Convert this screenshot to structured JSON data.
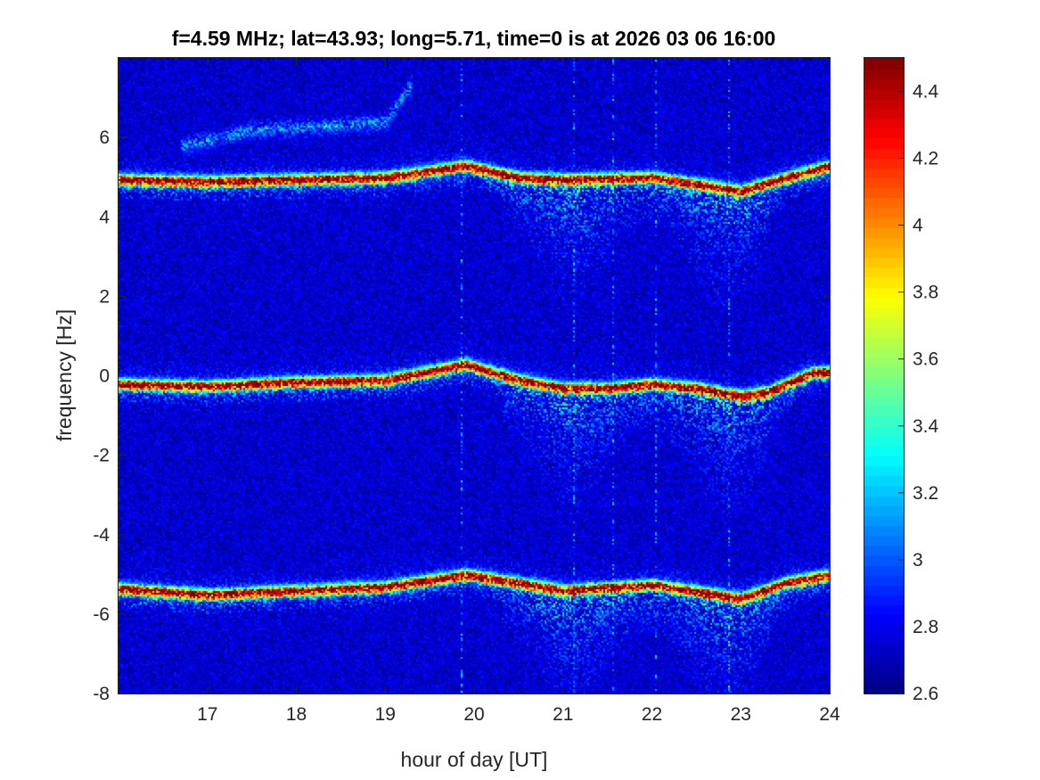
{
  "chart_data": {
    "type": "heatmap",
    "title": "f=4.59 MHz;  lat=43.93; long=5.71, time=0 is at 2026 03 06 16:00",
    "xlabel": "hour of day [UT]",
    "ylabel": "frequency [Hz]",
    "xlim": [
      16,
      24
    ],
    "ylim": [
      -8,
      8
    ],
    "xticks": [
      "17",
      "18",
      "19",
      "20",
      "21",
      "22",
      "23",
      "24"
    ],
    "yticks": [
      "-8",
      "-6",
      "-4",
      "-2",
      "0",
      "2",
      "4",
      "6"
    ],
    "colorbar": {
      "colormap": "jet",
      "clim": [
        2.6,
        4.5
      ],
      "ticks": [
        "2.6",
        "2.8",
        "3",
        "3.2",
        "3.4",
        "3.6",
        "3.8",
        "4",
        "4.2",
        "4.4"
      ]
    },
    "traces": [
      {
        "name": "upper",
        "hours": [
          16,
          17,
          18,
          19,
          19.9,
          20.5,
          21,
          22,
          22.6,
          23,
          23.5,
          24
        ],
        "freq": [
          4.95,
          4.9,
          4.95,
          5.0,
          5.3,
          5.0,
          4.95,
          5.0,
          4.8,
          4.65,
          5.0,
          5.3
        ]
      },
      {
        "name": "central",
        "hours": [
          16,
          17,
          18,
          19,
          19.9,
          20.5,
          21,
          21.5,
          22,
          22.5,
          23,
          23.3,
          23.8,
          24
        ],
        "freq": [
          -0.2,
          -0.25,
          -0.15,
          -0.1,
          0.3,
          -0.1,
          -0.3,
          -0.3,
          -0.2,
          -0.3,
          -0.5,
          -0.4,
          0.1,
          0.1
        ]
      },
      {
        "name": "lower",
        "hours": [
          16,
          17,
          18,
          19,
          19.9,
          20.5,
          21,
          22,
          23,
          23.5,
          24
        ],
        "freq": [
          -5.35,
          -5.5,
          -5.4,
          -5.3,
          -5.0,
          -5.2,
          -5.4,
          -5.25,
          -5.6,
          -5.2,
          -5.0
        ]
      }
    ],
    "faint_trace": {
      "hours": [
        16.7,
        17.5,
        18.3,
        19.0,
        19.3
      ],
      "freq": [
        5.8,
        6.2,
        6.3,
        6.4,
        7.4
      ]
    },
    "diffuse_spread_centers_hours": [
      21.1,
      22.8
    ]
  }
}
